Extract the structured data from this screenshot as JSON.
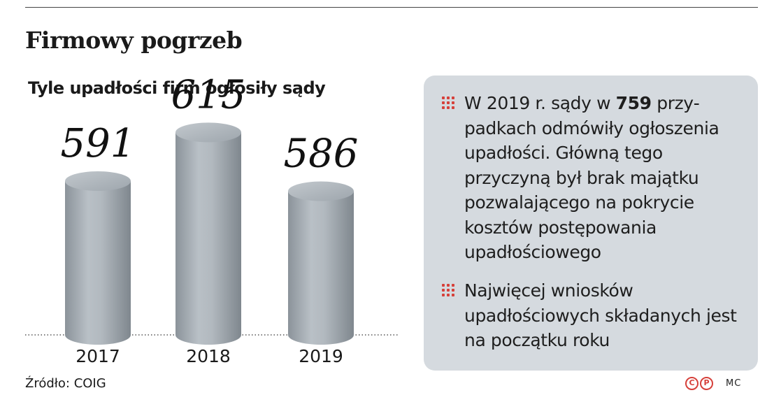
{
  "title": "Firmowy pogrzeb",
  "subtitle": "Tyle upadłości firm ogłosiły sądy",
  "chart_data": {
    "type": "bar",
    "categories": [
      "2017",
      "2018",
      "2019"
    ],
    "values": [
      591,
      615,
      586
    ],
    "title": "Tyle upadłości firm ogłosiły sądy"
  },
  "colors": {
    "accent": "#d6403a",
    "cylinder": "#a8b0b7",
    "panel": "#d5dadf"
  },
  "info": {
    "item1_pre": "W 2019 r. sądy w ",
    "item1_bold": "759",
    "item1_post": " przy­padkach odmówiły ogłoszenia upadłości. Główną tego przyczyną był brak majątku pozwalającego na pokrycie kosztów postępowania upadłościowego",
    "item2": "Najwięcej wniosków upadłościowych składanych jest na początku roku"
  },
  "source": "Źródło: COIG",
  "credits": {
    "c_icon": "C",
    "p_icon": "P",
    "author": "MC"
  }
}
